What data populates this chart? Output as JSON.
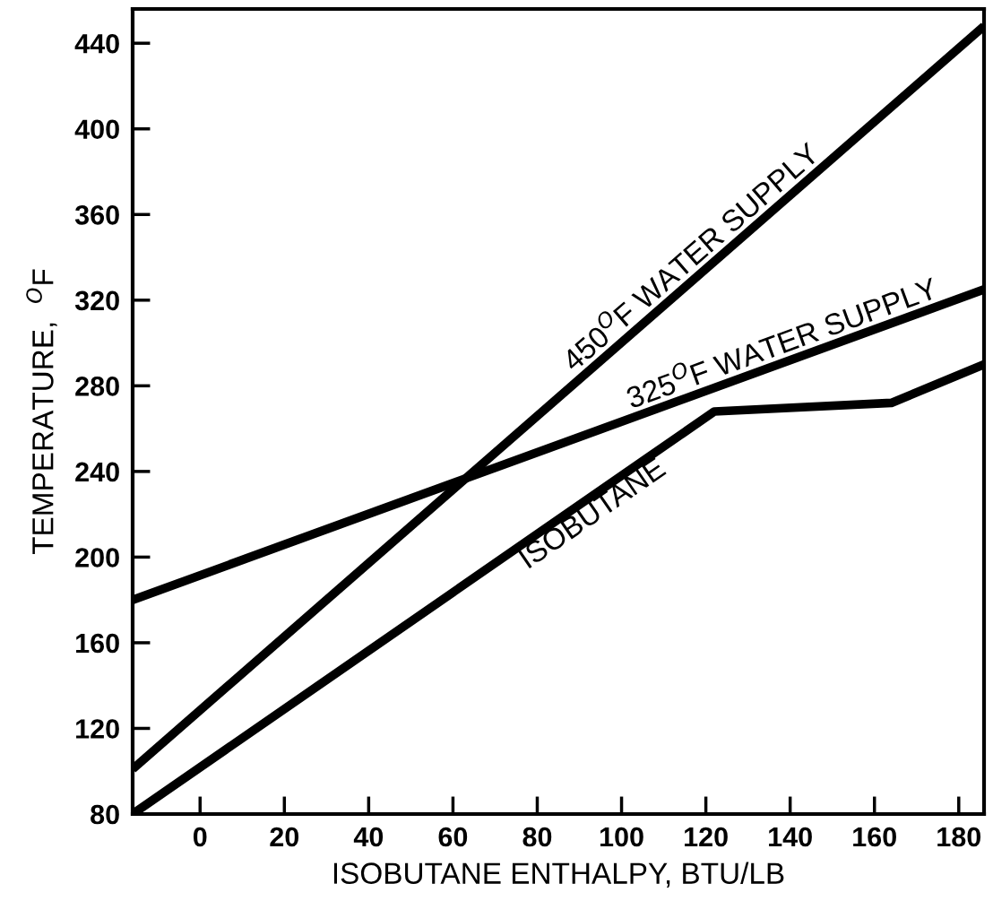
{
  "chart_data": {
    "type": "line",
    "xlabel": "ISOBUTANE ENTHALPY, BTU/LB",
    "ylabel": "TEMPERATURE,  $^{O}$F",
    "xlim": [
      -16,
      186
    ],
    "ylim": [
      80,
      456
    ],
    "xticks": [
      0,
      20,
      40,
      60,
      80,
      100,
      120,
      140,
      160,
      180
    ],
    "yticks": [
      80,
      120,
      160,
      200,
      240,
      280,
      320,
      360,
      400,
      440
    ],
    "grid": false,
    "marker": "none",
    "line_style": "solid",
    "series": [
      {
        "name": "450$^{O}$F WATER SUPPLY",
        "color": "#000000",
        "x": [
          -16,
          186
        ],
        "values": [
          101,
          448
        ]
      },
      {
        "name": "325$^{O}$F WATER SUPPLY",
        "color": "#000000",
        "x": [
          -16,
          186
        ],
        "values": [
          180,
          325
        ]
      },
      {
        "name": "ISOBUTANE",
        "color": "#000000",
        "x": [
          -16,
          122,
          164,
          186
        ],
        "values": [
          80,
          268,
          272,
          290
        ]
      }
    ]
  }
}
